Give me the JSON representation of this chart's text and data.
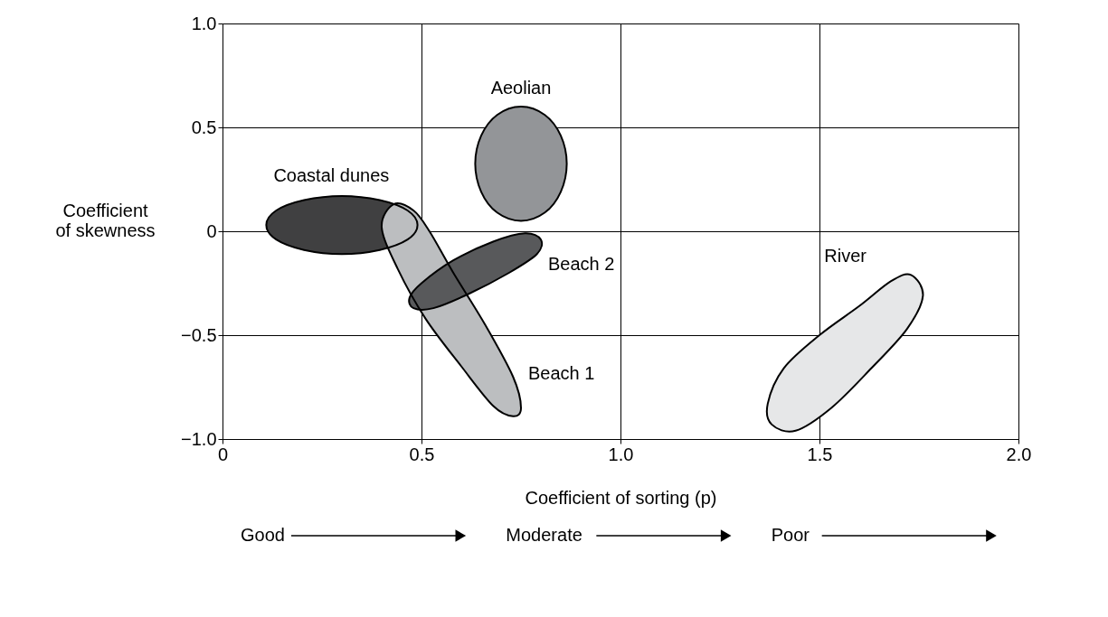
{
  "chart_data": {
    "type": "area",
    "xlabel": "Coefficient of sorting (p)",
    "ylabel": "Coefficient of skewness",
    "xlim": [
      0,
      2.0
    ],
    "ylim": [
      -1.0,
      1.0
    ],
    "xticks": [
      0,
      0.5,
      {
        "value": 1.0,
        "label": "1.0"
      },
      1.5,
      {
        "value": 2.0,
        "label": "2.0"
      }
    ],
    "yticks": [
      {
        "value": -1.0,
        "label": "−1.0"
      },
      {
        "value": -0.5,
        "label": "−0.5"
      },
      0,
      0.5,
      {
        "value": 1.0,
        "label": "1.0"
      }
    ],
    "grid": true,
    "series": [
      {
        "name": "Coastal dunes",
        "color": "#404041",
        "x": [
          0.49,
          0.465,
          0.395,
          0.3,
          0.205,
          0.135,
          0.11,
          0.135,
          0.205,
          0.3,
          0.395,
          0.465
        ],
        "values": [
          0.03,
          0.1,
          0.15,
          0.17,
          0.15,
          0.1,
          0.03,
          -0.04,
          -0.09,
          -0.11,
          -0.09,
          -0.04
        ]
      },
      {
        "name": "Aeolian",
        "color": "#939598",
        "x": [
          0.865,
          0.85,
          0.81,
          0.75,
          0.69,
          0.65,
          0.635,
          0.65,
          0.69,
          0.75,
          0.81,
          0.85
        ],
        "values": [
          0.325,
          0.46,
          0.56,
          0.6,
          0.56,
          0.46,
          0.325,
          0.19,
          0.09,
          0.05,
          0.09,
          0.19
        ]
      },
      {
        "name": "Beach 1",
        "color": "#bcbec0",
        "x": [
          0.43,
          0.48,
          0.52,
          0.58,
          0.66,
          0.73,
          0.75,
          0.73,
          0.68,
          0.6,
          0.51,
          0.44,
          0.4
        ],
        "values": [
          0.13,
          0.1,
          0.0,
          -0.2,
          -0.45,
          -0.7,
          -0.85,
          -0.89,
          -0.84,
          -0.65,
          -0.42,
          -0.18,
          0.02
        ]
      },
      {
        "name": "Beach 2",
        "color": "#58595b",
        "x": [
          0.47,
          0.5,
          0.58,
          0.68,
          0.76,
          0.8,
          0.79,
          0.72,
          0.62,
          0.53,
          0.48
        ],
        "values": [
          -0.32,
          -0.25,
          -0.14,
          -0.05,
          -0.01,
          -0.04,
          -0.11,
          -0.2,
          -0.3,
          -0.37,
          -0.37
        ]
      },
      {
        "name": "River",
        "color": "#e6e7e8",
        "x": [
          1.37,
          1.41,
          1.5,
          1.6,
          1.68,
          1.73,
          1.76,
          1.72,
          1.63,
          1.53,
          1.44,
          1.38
        ],
        "values": [
          -0.83,
          -0.66,
          -0.5,
          -0.36,
          -0.24,
          -0.21,
          -0.31,
          -0.47,
          -0.66,
          -0.85,
          -0.96,
          -0.93
        ]
      }
    ],
    "annotations": [
      "Good",
      "Moderate",
      "Poor"
    ]
  }
}
